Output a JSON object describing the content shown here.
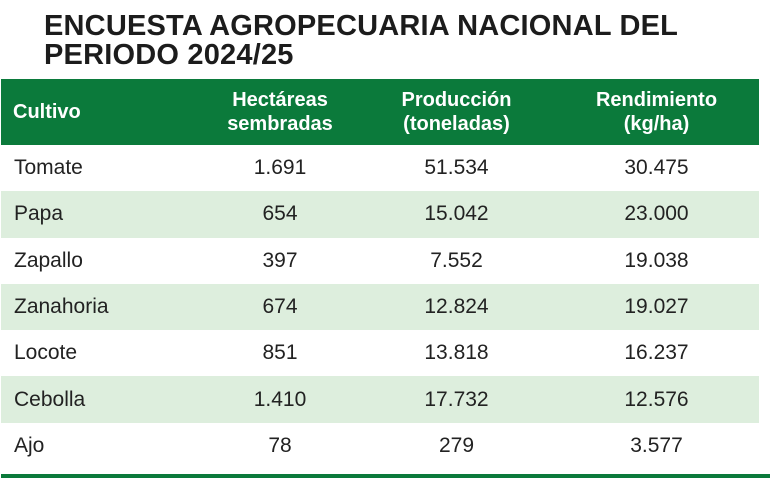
{
  "title": "ENCUESTA AGROPECUARIA NACIONAL DEL PERIODO 2024/25",
  "colors": {
    "header_bg": "#0b7a3b",
    "header_text": "#ffffff",
    "row_alt_bg": "#ddeedd",
    "row_bg": "#ffffff",
    "rule": "#0b7a3b"
  },
  "table": {
    "headers": [
      {
        "line1": "Cultivo",
        "line2": ""
      },
      {
        "line1": "Hectáreas",
        "line2": "sembradas"
      },
      {
        "line1": "Producción",
        "line2": "(toneladas)"
      },
      {
        "line1": "Rendimiento",
        "line2": "(kg/ha)"
      }
    ],
    "rows": [
      {
        "cultivo": "Tomate",
        "hectareas": "1.691",
        "produccion": "51.534",
        "rendimiento": "30.475"
      },
      {
        "cultivo": "Papa",
        "hectareas": "654",
        "produccion": "15.042",
        "rendimiento": "23.000"
      },
      {
        "cultivo": "Zapallo",
        "hectareas": "397",
        "produccion": "7.552",
        "rendimiento": "19.038"
      },
      {
        "cultivo": "Zanahoria",
        "hectareas": "674",
        "produccion": "12.824",
        "rendimiento": "19.027"
      },
      {
        "cultivo": "Locote",
        "hectareas": "851",
        "produccion": "13.818",
        "rendimiento": "16.237"
      },
      {
        "cultivo": "Cebolla",
        "hectareas": "1.410",
        "produccion": "17.732",
        "rendimiento": "12.576"
      },
      {
        "cultivo": "Ajo",
        "hectareas": "78",
        "produccion": "279",
        "rendimiento": "3.577"
      }
    ]
  }
}
